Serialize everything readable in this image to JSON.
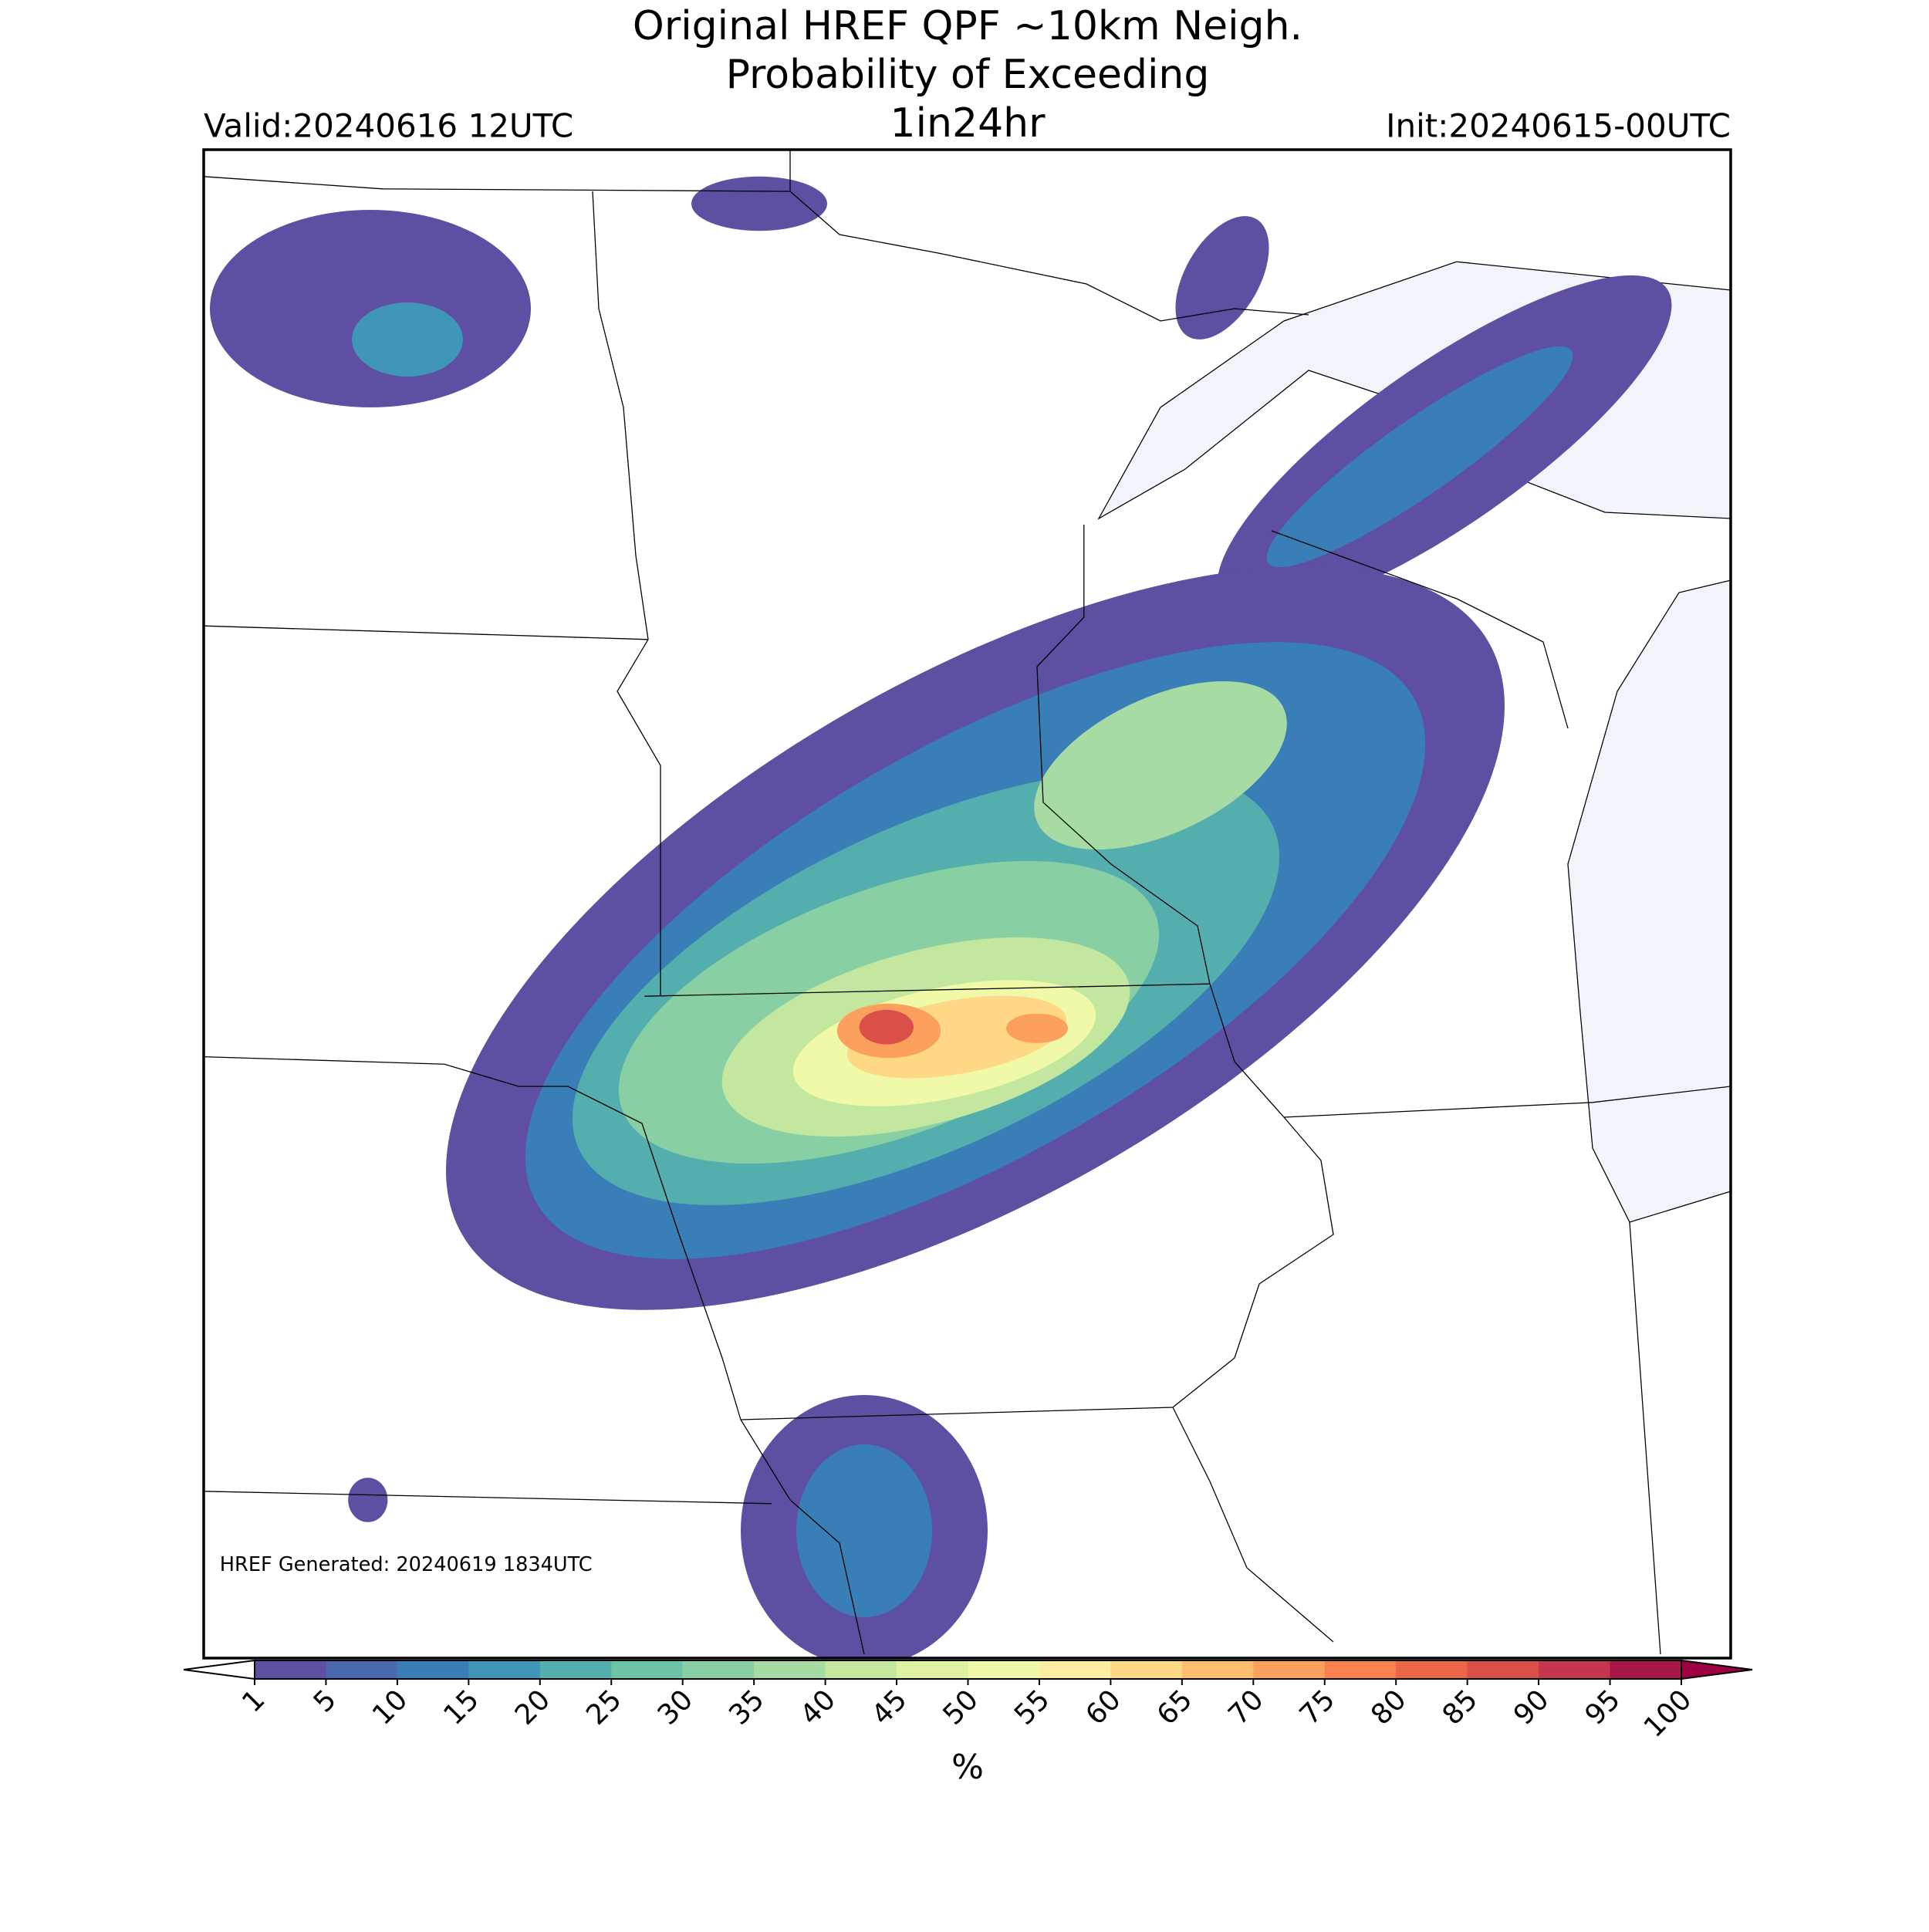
{
  "header": {
    "title_lines": [
      "Original HREF QPF ~10km Neigh.",
      "Probability of Exceeding",
      "1in24hr"
    ],
    "valid": "Valid:20240616 12UTC",
    "init": "Init:20240615-00UTC"
  },
  "map": {
    "note": "HREF Generated: 20240619 1834UTC"
  },
  "colorbar": {
    "label": "%",
    "ticks": [
      1,
      5,
      10,
      15,
      20,
      25,
      30,
      35,
      40,
      45,
      50,
      55,
      60,
      65,
      70,
      75,
      80,
      85,
      90,
      95,
      100
    ],
    "colors": [
      "#5e4fa2",
      "#4a68ad",
      "#3a7eb8",
      "#3f96b7",
      "#55aeae",
      "#6cc4a4",
      "#88cfa4",
      "#a6dba4",
      "#c3e79f",
      "#def2a1",
      "#f0f9a8",
      "#fdeea2",
      "#fed884",
      "#fdbe6e",
      "#fca05d",
      "#f8814f",
      "#ea6647",
      "#db4f4b",
      "#c4364e",
      "#a71745"
    ],
    "under_color": "#ffffff",
    "over_color": "#9e0142"
  }
}
